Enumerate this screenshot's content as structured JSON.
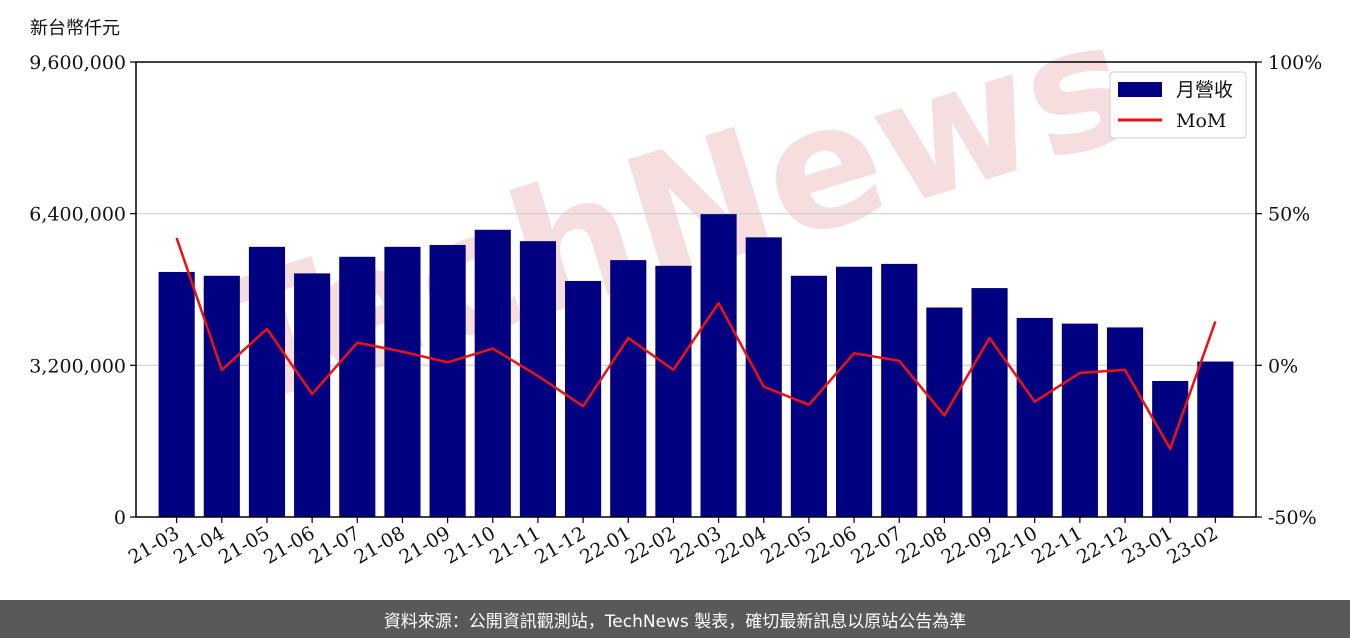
{
  "unit_label": "新台幣仟元",
  "footer_text": "資料來源：公開資訊觀測站，TechNews 製表，確切最新訊息以原站公告為準",
  "watermark": "TechNews",
  "colors": {
    "bar": "#000080",
    "line": "#ee1111",
    "watermark": "#f6dede",
    "footer_bg": "#595959"
  },
  "chart_data": {
    "type": "bar",
    "categories": [
      "21-03",
      "21-04",
      "21-05",
      "21-06",
      "21-07",
      "21-08",
      "21-09",
      "21-10",
      "21-11",
      "21-12",
      "22-01",
      "22-02",
      "22-03",
      "22-04",
      "22-05",
      "22-06",
      "22-07",
      "22-08",
      "22-09",
      "22-10",
      "22-11",
      "22-12",
      "23-01",
      "23-02"
    ],
    "series": [
      {
        "name": "月營收",
        "type": "bar",
        "axis": "left",
        "values": [
          5170000,
          5090000,
          5700000,
          5140000,
          5490000,
          5700000,
          5740000,
          6060000,
          5820000,
          4980000,
          5420000,
          5300000,
          6390000,
          5900000,
          5090000,
          5280000,
          5340000,
          4420000,
          4830000,
          4200000,
          4080000,
          4000000,
          2870000,
          3280000
        ]
      },
      {
        "name": "MoM",
        "type": "line",
        "axis": "right",
        "values": [
          42,
          -1.5,
          12,
          -9.5,
          7.5,
          4.5,
          1,
          5.5,
          -3.5,
          -13.5,
          9,
          -1.5,
          20.5,
          -7,
          -13,
          4,
          1.5,
          -16.5,
          9,
          -12,
          -2.5,
          -1.5,
          -27.5,
          14.5
        ]
      }
    ],
    "y_left": {
      "lim": [
        0,
        9600000
      ],
      "ticks": [
        0,
        3200000,
        6400000,
        9600000
      ],
      "tick_labels": [
        "0",
        "3,200,000",
        "6,400,000",
        "9,600,000"
      ]
    },
    "y_right": {
      "lim": [
        -50,
        100
      ],
      "ticks": [
        -50,
        0,
        50,
        100
      ],
      "tick_labels": [
        "-50%",
        "0%",
        "50%",
        "100%"
      ]
    },
    "grid": "horizontal",
    "legend": "top-right"
  }
}
